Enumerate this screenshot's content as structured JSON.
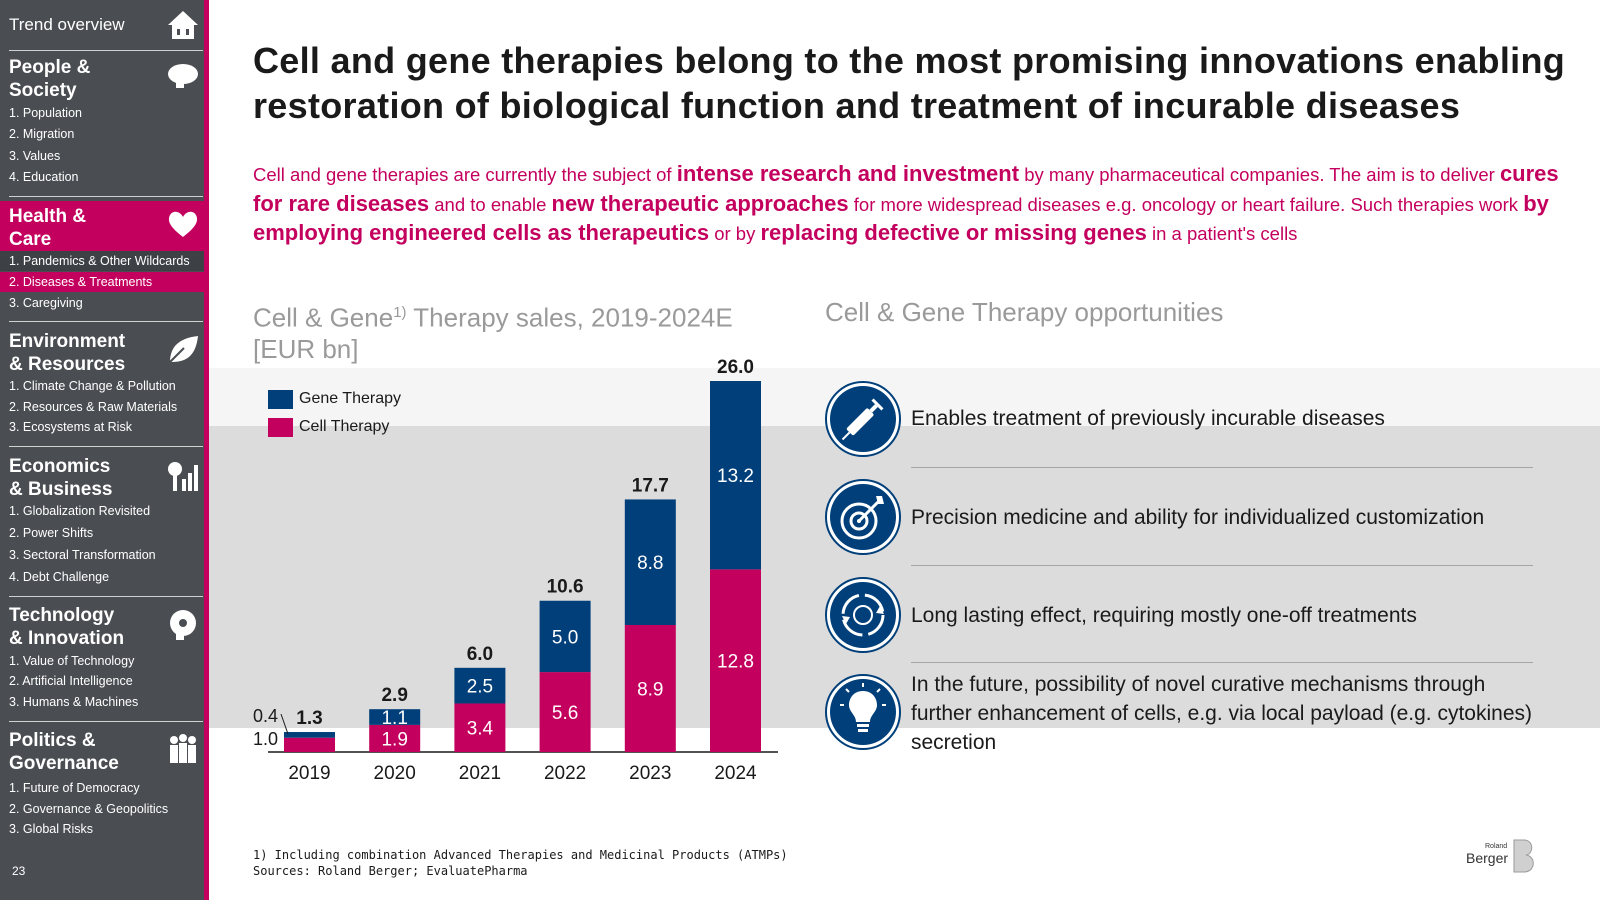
{
  "sidebar": {
    "top_label": "Trend overview",
    "page_number": "23",
    "sections": [
      {
        "title_line1": "People &",
        "title_line2": "Society",
        "items": [
          "1. Population",
          "2. Migration",
          "3. Values",
          "4. Education"
        ]
      },
      {
        "title_line1": "Health &",
        "title_line2": "Care",
        "items": [
          "1. Pandemics & Other Wildcards",
          "2. Diseases & Treatments",
          "3. Caregiving"
        ],
        "active_item": 1
      },
      {
        "title_line1": "Environment",
        "title_line2": "& Resources",
        "items": [
          "1. Climate Change & Pollution",
          "2. Resources & Raw Materials",
          "3. Ecosystems at Risk"
        ]
      },
      {
        "title_line1": "Economics",
        "title_line2": "& Business",
        "items": [
          "1. Globalization Revisited",
          "2. Power Shifts",
          "3. Sectoral Transformation",
          "4. Debt Challenge"
        ]
      },
      {
        "title_line1": "Technology",
        "title_line2": "& Innovation",
        "items": [
          "1. Value of Technology",
          "2. Artificial Intelligence",
          "3. Humans & Machines"
        ]
      },
      {
        "title_line1": "Politics &",
        "title_line2": "Governance",
        "items": [
          "1. Future of Democracy",
          "2. Governance & Geopolitics",
          "3. Global Risks"
        ]
      }
    ],
    "icons": [
      "house-icon",
      "head-icon",
      "heart-icon",
      "leaf-icon",
      "growth-icon",
      "gear-head-icon",
      "people-icon"
    ]
  },
  "title_line1": "Cell and gene therapies belong to the most promising innovations enabling",
  "title_line2": "restoration of biological function and treatment of incurable diseases",
  "intro": {
    "p1": "Cell and gene therapies are currently the subject of ",
    "b1": "intense research and investment",
    "p2": " by many pharmaceutical companies. The aim is to deliver ",
    "b2": "cures for rare diseases",
    "p3": " and to enable ",
    "b3": "new therapeutic approaches",
    "p4": " for more widespread diseases e.g. oncology or heart failure. Such therapies work ",
    "b4": "by employing engineered cells as therapeutics",
    "p5": " or by ",
    "b5": "replacing defective or missing genes",
    "p6": " in a patient's cells"
  },
  "chart_heading": {
    "part1": "Cell & Gene",
    "sup": "1)",
    "part2": " Therapy sales, 2019-2024E",
    "line2": "[EUR bn]"
  },
  "opportunities_heading": "Cell & Gene Therapy opportunities",
  "opportunities": [
    {
      "icon": "syringe-icon",
      "text": "Enables treatment of previously incurable diseases"
    },
    {
      "icon": "target-icon",
      "text": "Precision medicine and ability for individualized customization"
    },
    {
      "icon": "cycle-icon",
      "text": "Long lasting effect, requiring mostly one-off treatments"
    },
    {
      "icon": "lightbulb-icon",
      "text": "In the future, possibility of novel curative mechanisms through further enhancement of cells, e.g. via local payload (e.g. cytokines) secretion"
    }
  ],
  "chart_data": {
    "type": "bar",
    "stacked": true,
    "categories": [
      "2019",
      "2020",
      "2021",
      "2022",
      "2023",
      "2024"
    ],
    "series": [
      {
        "name": "Cell Therapy",
        "values": [
          1.0,
          1.9,
          3.4,
          5.6,
          8.9,
          12.8
        ],
        "color": "#c4005e",
        "labels": [
          "1.0",
          "1.9",
          "3.4",
          "5.6",
          "8.9",
          "12.8"
        ]
      },
      {
        "name": "Gene Therapy",
        "values": [
          0.4,
          1.1,
          2.5,
          5.0,
          8.8,
          13.2
        ],
        "color": "#003f7a",
        "labels": [
          "0.4",
          "1.1",
          "2.5",
          "5.0",
          "8.8",
          "13.2"
        ]
      }
    ],
    "totals": [
      1.3,
      2.9,
      6.0,
      10.6,
      17.7,
      26.0
    ],
    "total_labels": [
      "1.3",
      "2.9",
      "6.0",
      "10.6",
      "17.7",
      "26.0"
    ],
    "ylim": [
      0,
      26.0
    ],
    "grid": false,
    "legend": "top-left"
  },
  "footnote": {
    "line1": "1) Including combination Advanced Therapies and Medicinal Products (ATMPs)",
    "line2": "Sources: Roland Berger; EvaluatePharma"
  },
  "logo": {
    "small": "Roland",
    "big": "Berger"
  }
}
